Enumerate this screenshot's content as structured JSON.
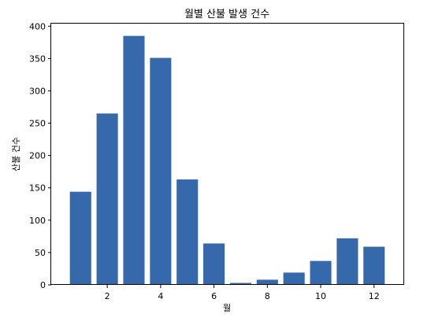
{
  "chart_data": {
    "type": "bar",
    "title": "월별 산불 발생 건수",
    "xlabel": "월",
    "ylabel": "산불 건수",
    "x": [
      1,
      2,
      3,
      4,
      5,
      6,
      7,
      8,
      9,
      10,
      11,
      12
    ],
    "values": [
      144,
      265,
      385,
      351,
      163,
      64,
      3,
      8,
      19,
      37,
      72,
      59
    ],
    "xlim": [
      -0.1,
      13.1
    ],
    "ylim": [
      0,
      404
    ],
    "xticks": [
      2,
      4,
      6,
      8,
      10,
      12
    ],
    "yticks": [
      0,
      50,
      100,
      150,
      200,
      250,
      300,
      350,
      400
    ],
    "bar_color": "#3569ac",
    "grid": false
  }
}
